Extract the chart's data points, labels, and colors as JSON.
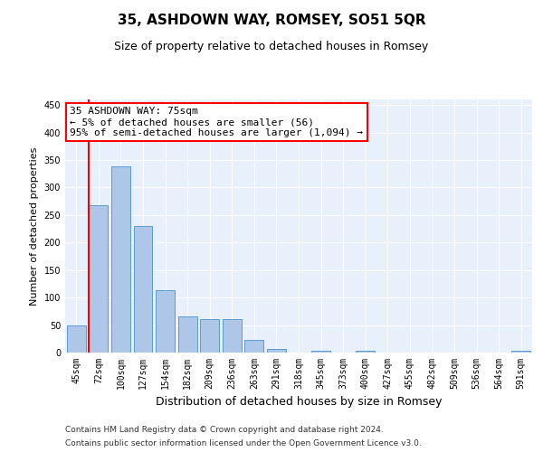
{
  "title": "35, ASHDOWN WAY, ROMSEY, SO51 5QR",
  "subtitle": "Size of property relative to detached houses in Romsey",
  "xlabel": "Distribution of detached houses by size in Romsey",
  "ylabel": "Number of detached properties",
  "categories": [
    "45sqm",
    "72sqm",
    "100sqm",
    "127sqm",
    "154sqm",
    "182sqm",
    "209sqm",
    "236sqm",
    "263sqm",
    "291sqm",
    "318sqm",
    "345sqm",
    "373sqm",
    "400sqm",
    "427sqm",
    "455sqm",
    "482sqm",
    "509sqm",
    "536sqm",
    "564sqm",
    "591sqm"
  ],
  "values": [
    50,
    267,
    338,
    230,
    114,
    65,
    61,
    61,
    23,
    7,
    0,
    4,
    0,
    4,
    0,
    0,
    0,
    0,
    0,
    0,
    4
  ],
  "bar_color": "#aec6e8",
  "bar_edge_color": "#5b9bd5",
  "annotation_line1": "35 ASHDOWN WAY: 75sqm",
  "annotation_line2": "← 5% of detached houses are smaller (56)",
  "annotation_line3": "95% of semi-detached houses are larger (1,094) →",
  "annotation_box_color": "white",
  "annotation_box_edge_color": "red",
  "vline_color": "red",
  "ylim": [
    0,
    460
  ],
  "yticks": [
    0,
    50,
    100,
    150,
    200,
    250,
    300,
    350,
    400,
    450
  ],
  "background_color": "#e8f0fb",
  "grid_color": "white",
  "footer_line1": "Contains HM Land Registry data © Crown copyright and database right 2024.",
  "footer_line2": "Contains public sector information licensed under the Open Government Licence v3.0.",
  "title_fontsize": 11,
  "subtitle_fontsize": 9,
  "xlabel_fontsize": 9,
  "ylabel_fontsize": 8,
  "tick_fontsize": 7,
  "annotation_fontsize": 8,
  "footer_fontsize": 6.5
}
